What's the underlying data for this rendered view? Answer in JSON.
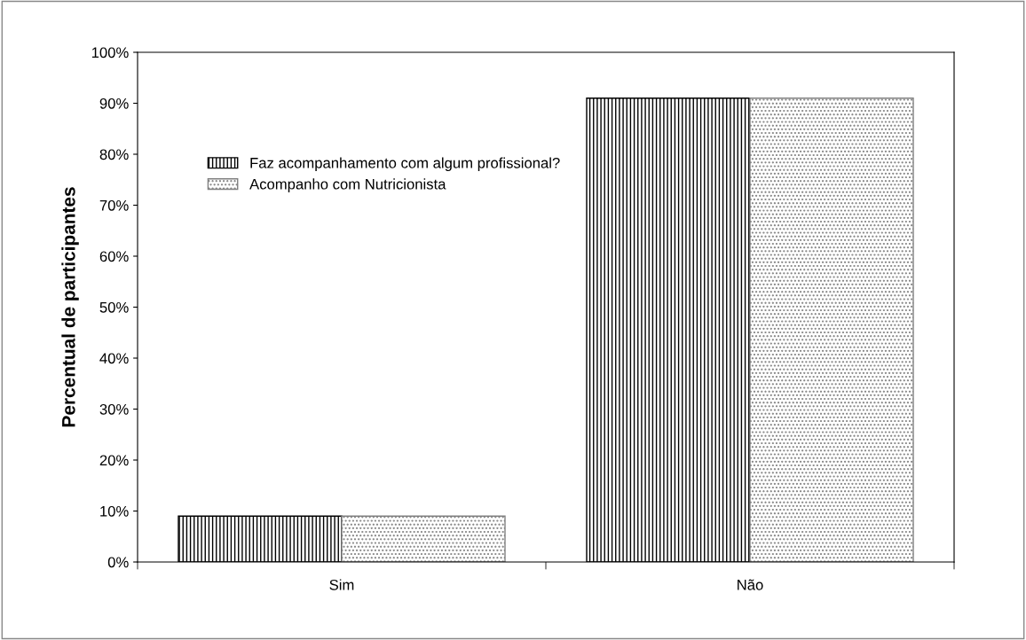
{
  "chart_data": {
    "type": "bar",
    "ylabel": "Percentual de participantes",
    "categories": [
      "Sim",
      "Não"
    ],
    "series": [
      {
        "name": "Faz acompanhamento com algum profissional?",
        "color": "#000000",
        "values": [
          9,
          91
        ]
      },
      {
        "name": "Acompanho com Nutricionista",
        "color": "#808080",
        "values": [
          9,
          91
        ]
      }
    ],
    "ylim": [
      0,
      100
    ],
    "yticks": [
      {
        "value": 0,
        "label": "0%"
      },
      {
        "value": 10,
        "label": "10%"
      },
      {
        "value": 20,
        "label": "20%"
      },
      {
        "value": 30,
        "label": "30%"
      },
      {
        "value": 40,
        "label": "40%"
      },
      {
        "value": 50,
        "label": "50%"
      },
      {
        "value": 60,
        "label": "60%"
      },
      {
        "value": 70,
        "label": "70%"
      },
      {
        "value": 80,
        "label": "80%"
      },
      {
        "value": 90,
        "label": "90%"
      },
      {
        "value": 100,
        "label": "100%"
      }
    ],
    "grid": false,
    "legend": "top left"
  }
}
